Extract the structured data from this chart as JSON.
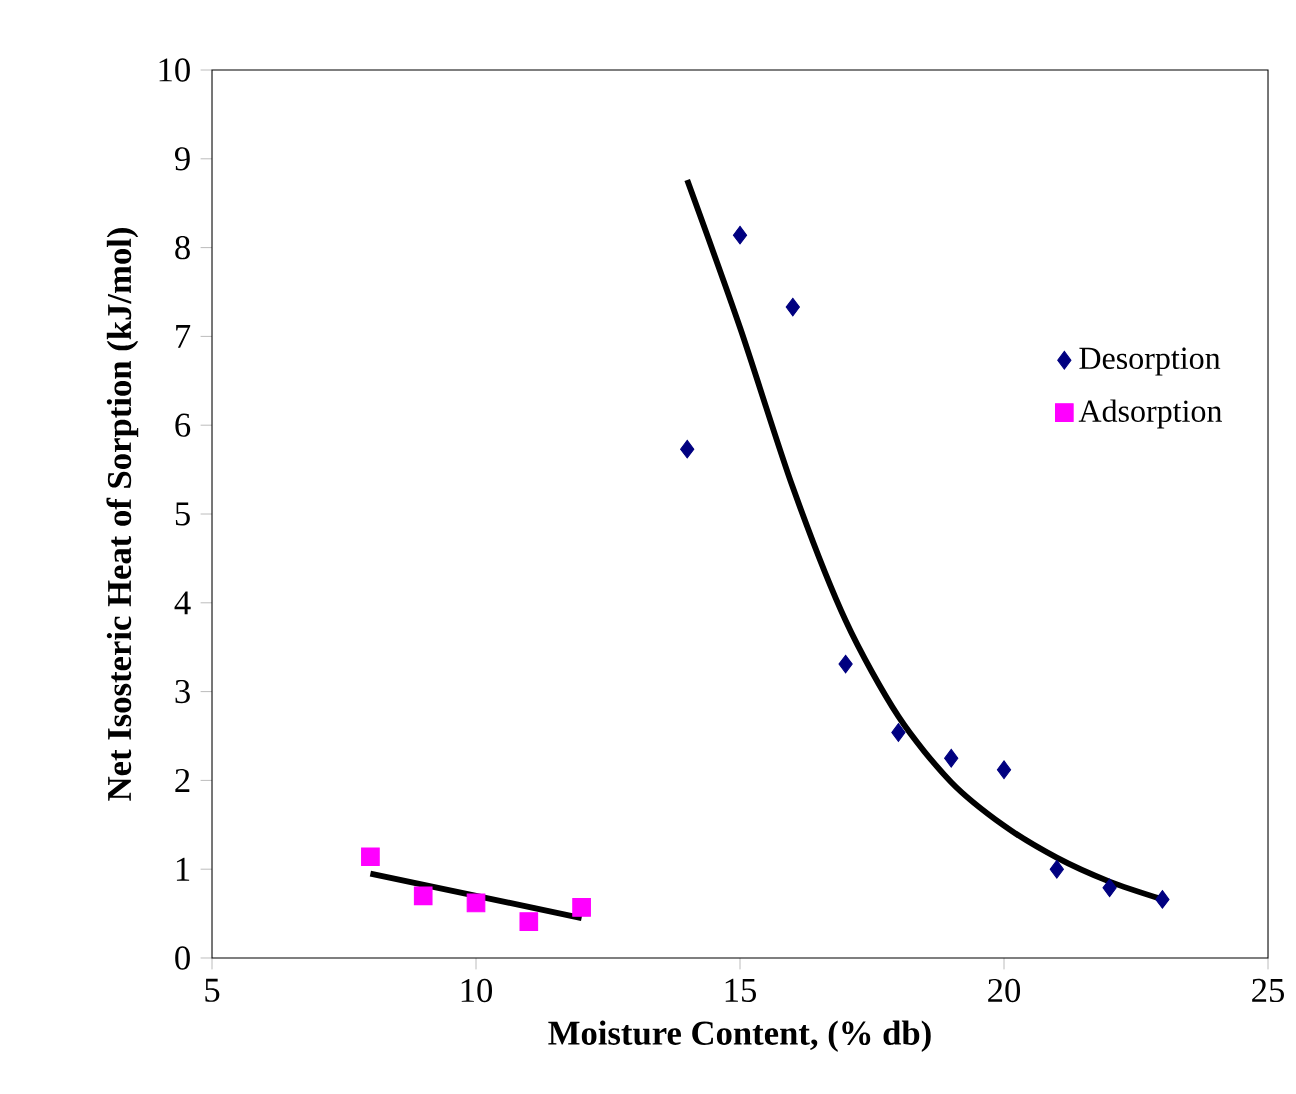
{
  "chart_data": {
    "type": "scatter",
    "xlabel": "Moisture Content, (% db)",
    "ylabel": "Net Isosteric Heat of Sorption (kJ/mol)",
    "xlim": [
      5,
      25
    ],
    "xticks": [
      5,
      10,
      15,
      20,
      25
    ],
    "ylim": [
      0,
      10
    ],
    "yticks": [
      0,
      1,
      2,
      3,
      4,
      5,
      6,
      7,
      8,
      9,
      10
    ],
    "legend": "top right",
    "grid": false,
    "series": [
      {
        "name": "Desorption",
        "color": "#000080",
        "marker": "diamond",
        "x": [
          14,
          15,
          16,
          17,
          18,
          19,
          20,
          21,
          22,
          23
        ],
        "values": [
          5.73,
          8.14,
          7.33,
          3.31,
          2.54,
          2.25,
          2.12,
          1.0,
          0.79,
          0.66
        ]
      },
      {
        "name": "Adsorption",
        "color": "#ff00ff",
        "marker": "square",
        "x": [
          8,
          9,
          10,
          11,
          12
        ],
        "values": [
          1.14,
          0.7,
          0.62,
          0.41,
          0.57
        ]
      },
      {
        "type": "line",
        "color": "#000000",
        "marker": "none",
        "x": [
          14,
          15,
          16,
          17,
          18,
          19,
          20,
          21,
          22,
          23
        ],
        "values": [
          8.76,
          7.1,
          5.3,
          3.8,
          2.72,
          1.98,
          1.49,
          1.13,
          0.86,
          0.66
        ]
      },
      {
        "type": "line",
        "color": "#000000",
        "marker": "none",
        "x": [
          8,
          12
        ],
        "values": [
          0.95,
          0.45
        ]
      }
    ]
  }
}
